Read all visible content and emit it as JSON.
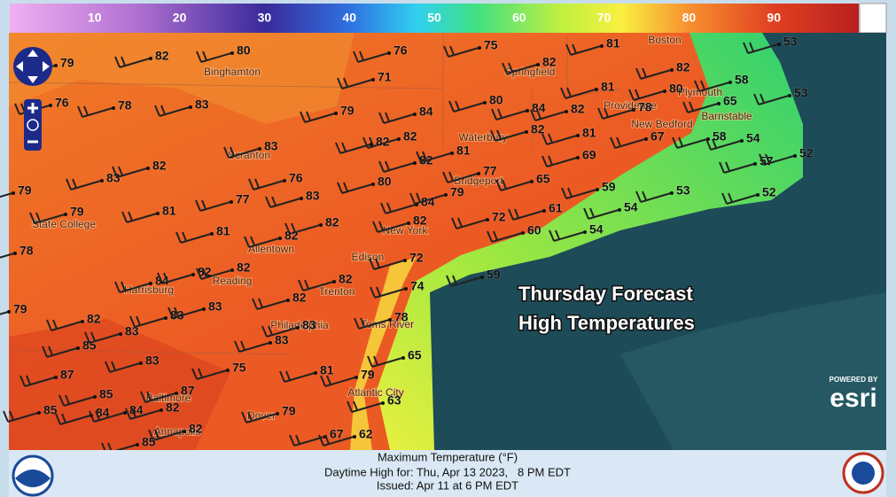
{
  "colorbar": {
    "range": [
      0,
      100
    ],
    "ticks": [
      10,
      20,
      30,
      40,
      50,
      60,
      70,
      80,
      90
    ]
  },
  "overlay": {
    "line1": "Thursday Forecast",
    "line2": "High Temperatures"
  },
  "attribution": {
    "powered_by": "POWERED BY",
    "brand": "esri"
  },
  "footer": {
    "title": "Maximum Temperature (°F)",
    "valid": "Daytime High for: Thu, Apr 13 2023,   8 PM EDT",
    "issued": "Issued: Apr 11 at 6 PM EDT"
  },
  "cities": [
    "Binghamton",
    "Scranton",
    "State College",
    "Allentown",
    "Harrisburg",
    "Reading",
    "Trenton",
    "Philadelphia",
    "Edison",
    "New York",
    "Toms River",
    "Atlantic City",
    "Baltimore",
    "Annapolis",
    "Dover",
    "Bridgeport",
    "Waterbury",
    "Springfield",
    "Providence",
    "Plymouth",
    "New Bedford",
    "Barnstable",
    "Boston"
  ],
  "temperatures": [
    79,
    82,
    80,
    76,
    75,
    81,
    53,
    82,
    71,
    82,
    58,
    53,
    76,
    78,
    83,
    79,
    84,
    80,
    84,
    82,
    81,
    80,
    78,
    65,
    82,
    82,
    83,
    82,
    81,
    67,
    58,
    54,
    82,
    81,
    69,
    57,
    52,
    79,
    83,
    82,
    76,
    77,
    65,
    80,
    83,
    77,
    79,
    84,
    59,
    53,
    52,
    79,
    81,
    82,
    82,
    72,
    61,
    54,
    81,
    82,
    60,
    54,
    78,
    72,
    84,
    82,
    82,
    82,
    74,
    59,
    82,
    79,
    83,
    83,
    82,
    78,
    83,
    85,
    83,
    83,
    65,
    83,
    75,
    87,
    81,
    79,
    85,
    87,
    63,
    85,
    84,
    84,
    82,
    79,
    67,
    62,
    82,
    85
  ]
}
